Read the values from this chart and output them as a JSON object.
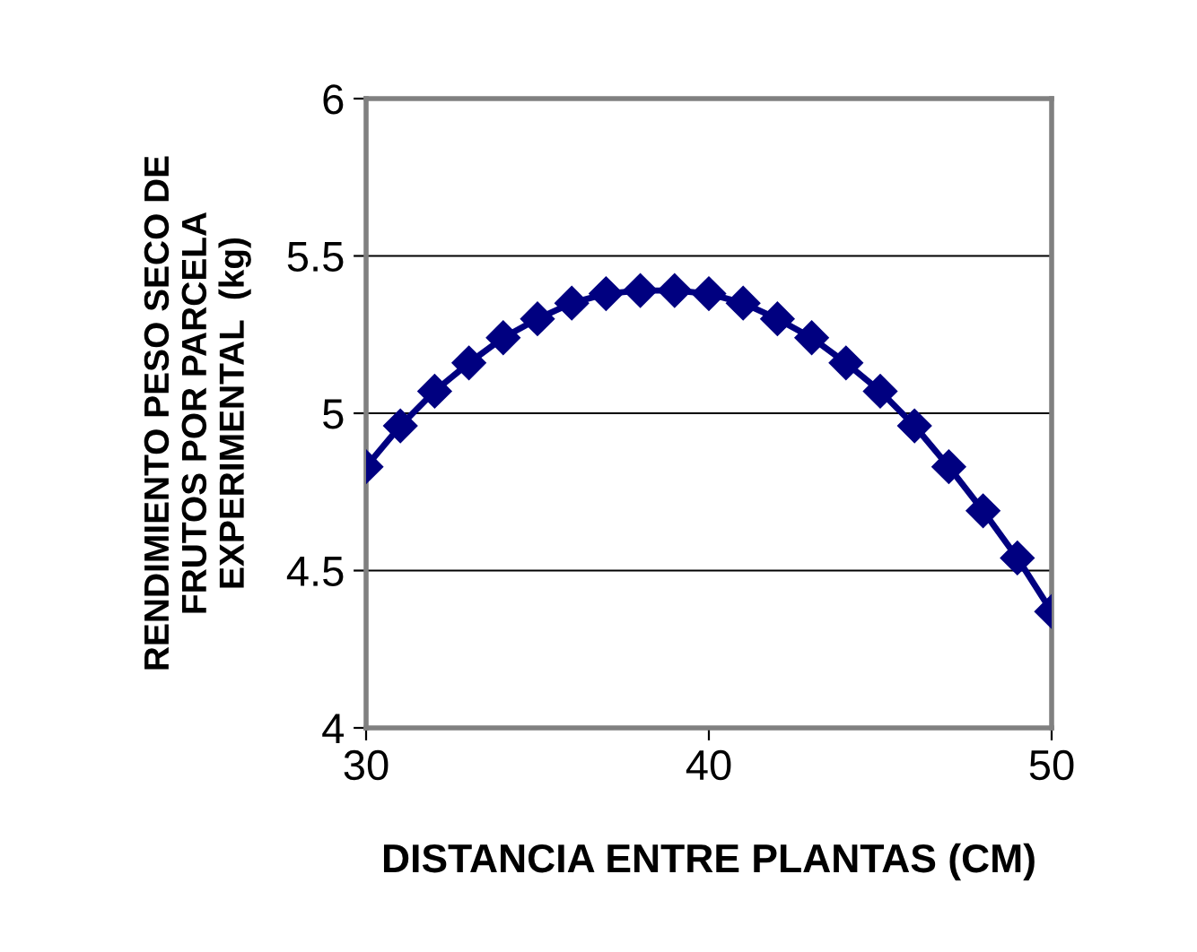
{
  "chart_data": {
    "type": "line",
    "xlabel": "DISTANCIA ENTRE PLANTAS (CM)",
    "ylabel": "RENDIMIENTO PESO SECO DE\nFRUTOS POR PARCELA\nEXPERIMENTAL  (kg)",
    "x": [
      30,
      31,
      32,
      33,
      34,
      35,
      36,
      37,
      38,
      39,
      40,
      41,
      42,
      43,
      44,
      45,
      46,
      47,
      48,
      49,
      50
    ],
    "series": [
      {
        "color": "#000080",
        "values": [
          4.83,
          4.96,
          5.07,
          5.16,
          5.24,
          5.3,
          5.35,
          5.38,
          5.39,
          5.39,
          5.38,
          5.35,
          5.3,
          5.24,
          5.16,
          5.07,
          4.96,
          4.83,
          4.69,
          4.54,
          4.37
        ]
      }
    ],
    "xlim": [
      30,
      50
    ],
    "xticks": [
      30,
      40,
      50
    ],
    "ylim": [
      4,
      6
    ],
    "yticks": [
      4,
      4.5,
      5,
      5.5,
      6
    ],
    "grid": "y",
    "marker": "diamond",
    "line_style": "solid",
    "legend": false
  }
}
